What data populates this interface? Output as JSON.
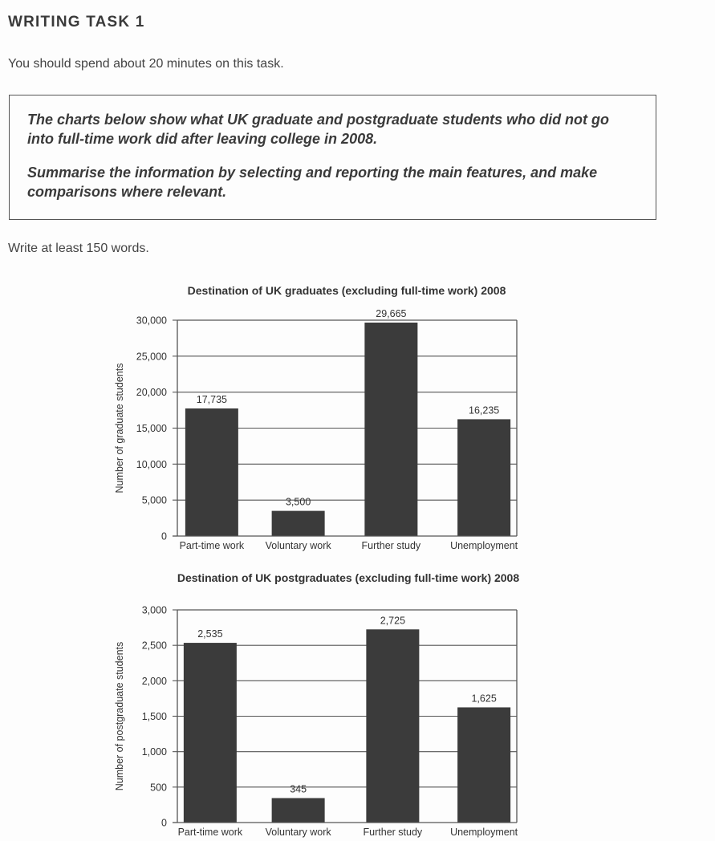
{
  "heading": "WRITING TASK 1",
  "instruction": "You should spend about 20 minutes on this task.",
  "task": {
    "paragraph1": "The charts below show what UK graduate and postgraduate students who did not go into full-time work did after leaving college in 2008.",
    "paragraph2": "Summarise the information by selecting and reporting the main features, and make comparisons where relevant."
  },
  "word_count_note": "Write at least 150 words.",
  "colors": {
    "bar": "#3b3b3b",
    "grid": "#555555",
    "text": "#333333"
  },
  "chart_data": [
    {
      "type": "bar",
      "title": "Destination of UK graduates (excluding full-time work) 2008",
      "xlabel": "",
      "ylabel": "Number of graduate students",
      "categories": [
        "Part-time work",
        "Voluntary work",
        "Further study",
        "Unemployment"
      ],
      "values": [
        17735,
        3500,
        29665,
        16235
      ],
      "value_labels": [
        "17,735",
        "3,500",
        "29,665",
        "16,235"
      ],
      "ylim": [
        0,
        30000
      ],
      "yticks": [
        0,
        5000,
        10000,
        15000,
        20000,
        25000,
        30000
      ],
      "ytick_labels": [
        "0",
        "5,000",
        "10,000",
        "15,000",
        "20,000",
        "25,000",
        "30,000"
      ],
      "grid": true,
      "legend": "none"
    },
    {
      "type": "bar",
      "title": "Destination of UK postgraduates (excluding full-time work) 2008",
      "xlabel": "",
      "ylabel": "Number of postgraduate students",
      "categories": [
        "Part-time work",
        "Voluntary work",
        "Further study",
        "Unemployment"
      ],
      "values": [
        2535,
        345,
        2725,
        1625
      ],
      "value_labels": [
        "2,535",
        "345",
        "2,725",
        "1,625"
      ],
      "ylim": [
        0,
        3000
      ],
      "yticks": [
        0,
        500,
        1000,
        1500,
        2000,
        2500,
        3000
      ],
      "ytick_labels": [
        "0",
        "500",
        "1,000",
        "1,500",
        "2,000",
        "2,500",
        "3,000"
      ],
      "grid": true,
      "legend": "none"
    }
  ]
}
